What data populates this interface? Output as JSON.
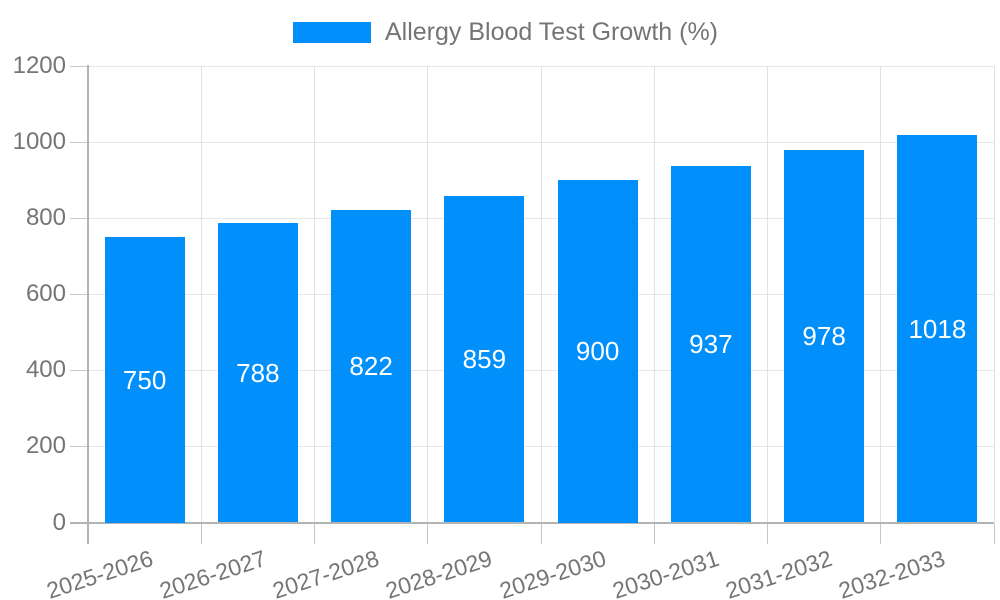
{
  "chart_data": {
    "type": "bar",
    "title": "Allergy Blood Test Growth (%)",
    "legend_label": "Allergy Blood Test Growth (%)",
    "legend_position": "top",
    "categories": [
      "2025-2026",
      "2026-2027",
      "2027-2028",
      "2028-2029",
      "2029-2030",
      "2030-2031",
      "2031-2032",
      "2032-2033"
    ],
    "values": [
      750,
      788,
      822,
      859,
      900,
      937,
      978,
      1018
    ],
    "xlabel": "",
    "ylabel": "",
    "ylim": [
      0,
      1200
    ],
    "yticks": [
      0,
      200,
      400,
      600,
      800,
      1000,
      1200
    ],
    "grid": true,
    "datalabels": "centered-in-bar",
    "colors": {
      "bar": "#008FFB",
      "axis_label": "#757575",
      "datalabel": "#ffffff",
      "gridline": "#e7e7e7",
      "axis_line": "#b3b3b3"
    }
  }
}
